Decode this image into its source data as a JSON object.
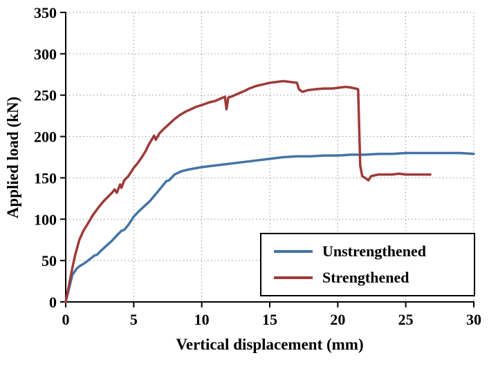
{
  "chart_data": {
    "type": "line",
    "title": "",
    "xlabel": "Vertical displacement (mm)",
    "ylabel": "Applied load (kN)",
    "xlim": [
      0,
      30
    ],
    "ylim": [
      0,
      350
    ],
    "xticks": [
      0,
      5,
      10,
      15,
      20,
      25,
      30
    ],
    "yticks": [
      0,
      50,
      100,
      150,
      200,
      250,
      300,
      350
    ],
    "grid": "dotted",
    "legend_position": "lower right",
    "series": [
      {
        "name": "Unstrengthened",
        "color": "#4474a4",
        "points": [
          [
            0,
            0
          ],
          [
            0.3,
            20
          ],
          [
            0.5,
            33
          ],
          [
            0.8,
            40
          ],
          [
            1,
            43
          ],
          [
            1.4,
            47
          ],
          [
            1.8,
            52
          ],
          [
            2.1,
            56
          ],
          [
            2.3,
            57
          ],
          [
            2.6,
            62
          ],
          [
            3,
            68
          ],
          [
            3.4,
            74
          ],
          [
            3.8,
            81
          ],
          [
            4.1,
            86
          ],
          [
            4.3,
            87
          ],
          [
            4.6,
            93
          ],
          [
            5,
            103
          ],
          [
            5.4,
            110
          ],
          [
            5.8,
            116
          ],
          [
            6.2,
            122
          ],
          [
            6.6,
            130
          ],
          [
            7,
            138
          ],
          [
            7.4,
            146
          ],
          [
            7.6,
            147
          ],
          [
            8,
            154
          ],
          [
            8.5,
            158
          ],
          [
            9,
            160
          ],
          [
            10,
            163
          ],
          [
            11,
            165
          ],
          [
            12,
            167
          ],
          [
            13,
            169
          ],
          [
            14,
            171
          ],
          [
            15,
            173
          ],
          [
            16,
            175
          ],
          [
            17,
            176
          ],
          [
            18,
            176
          ],
          [
            19,
            177
          ],
          [
            20,
            177
          ],
          [
            21,
            178
          ],
          [
            22,
            178
          ],
          [
            23,
            179
          ],
          [
            24,
            179
          ],
          [
            25,
            180
          ],
          [
            26,
            180
          ],
          [
            27,
            180
          ],
          [
            28,
            180
          ],
          [
            29,
            180
          ],
          [
            30,
            179
          ]
        ]
      },
      {
        "name": "Strengthened",
        "color": "#9e3a38",
        "points": [
          [
            0,
            0
          ],
          [
            0.3,
            25
          ],
          [
            0.5,
            42
          ],
          [
            0.7,
            57
          ],
          [
            1,
            75
          ],
          [
            1.3,
            86
          ],
          [
            1.6,
            94
          ],
          [
            2,
            105
          ],
          [
            2.4,
            114
          ],
          [
            2.8,
            122
          ],
          [
            3.1,
            127
          ],
          [
            3.4,
            132
          ],
          [
            3.6,
            136
          ],
          [
            3.75,
            132
          ],
          [
            4,
            142
          ],
          [
            4.1,
            138
          ],
          [
            4.3,
            147
          ],
          [
            4.6,
            152
          ],
          [
            5,
            162
          ],
          [
            5.3,
            168
          ],
          [
            5.6,
            175
          ],
          [
            5.9,
            183
          ],
          [
            6.1,
            190
          ],
          [
            6.35,
            197
          ],
          [
            6.5,
            201
          ],
          [
            6.62,
            196
          ],
          [
            6.9,
            204
          ],
          [
            7.2,
            209
          ],
          [
            7.6,
            215
          ],
          [
            8,
            221
          ],
          [
            8.4,
            226
          ],
          [
            8.8,
            230
          ],
          [
            9.2,
            233
          ],
          [
            9.6,
            236
          ],
          [
            10,
            238
          ],
          [
            10.5,
            241
          ],
          [
            11,
            243
          ],
          [
            11.4,
            246
          ],
          [
            11.7,
            248
          ],
          [
            11.82,
            233
          ],
          [
            11.95,
            247
          ],
          [
            12.3,
            249
          ],
          [
            12.7,
            252
          ],
          [
            13,
            254
          ],
          [
            13.5,
            258
          ],
          [
            14,
            261
          ],
          [
            14.5,
            263
          ],
          [
            15,
            265
          ],
          [
            15.5,
            266
          ],
          [
            16,
            267
          ],
          [
            16.5,
            266
          ],
          [
            17,
            265
          ],
          [
            17.15,
            257
          ],
          [
            17.4,
            254
          ],
          [
            17.8,
            256
          ],
          [
            18.3,
            257
          ],
          [
            19,
            258
          ],
          [
            19.6,
            258
          ],
          [
            20.1,
            259
          ],
          [
            20.6,
            260
          ],
          [
            21,
            259
          ],
          [
            21.3,
            258
          ],
          [
            21.5,
            257
          ],
          [
            21.65,
            165
          ],
          [
            21.8,
            152
          ],
          [
            22,
            150
          ],
          [
            22.25,
            147
          ],
          [
            22.45,
            152
          ],
          [
            22.7,
            153
          ],
          [
            23,
            154
          ],
          [
            23.5,
            154
          ],
          [
            24,
            154
          ],
          [
            24.5,
            155
          ],
          [
            25,
            154
          ],
          [
            25.5,
            154
          ],
          [
            26,
            154
          ],
          [
            26.5,
            154
          ],
          [
            26.8,
            154
          ]
        ]
      }
    ]
  }
}
